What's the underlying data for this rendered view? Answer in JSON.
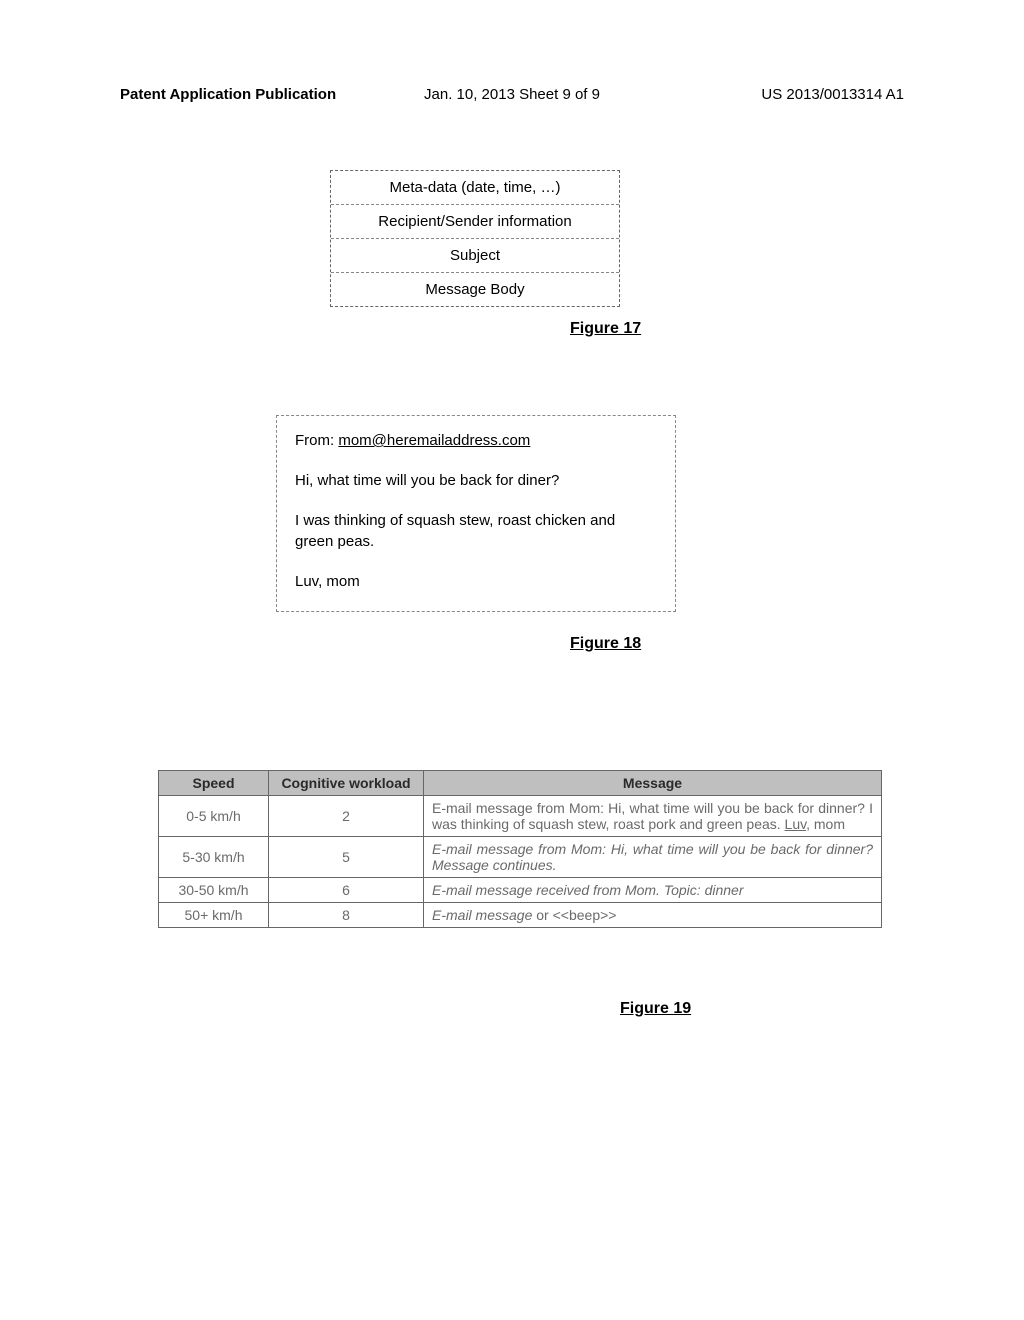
{
  "header": {
    "left": "Patent Application Publication",
    "center": "Jan. 10, 2013  Sheet 9 of 9",
    "right": "US 2013/0013314 A1"
  },
  "fig17": {
    "rows": [
      "Meta-data (date, time, …)",
      "Recipient/Sender information",
      "Subject",
      "Message Body"
    ],
    "label": "Figure 17"
  },
  "fig18": {
    "from_prefix": "From: ",
    "from_email": "mom@heremailaddress.com",
    "p1": "Hi, what time will you be back for diner?",
    "p2": "I was thinking of squash stew, roast chicken and green peas.",
    "p3": "Luv, mom",
    "label": "Figure 18"
  },
  "fig19": {
    "columns": [
      "Speed",
      "Cognitive workload",
      "Message"
    ],
    "rows": [
      {
        "speed": "0-5 km/h",
        "cog": "2",
        "msg_plain_pre": "E-mail message from Mom: Hi, what time will you be back for dinner? I was thinking of squash stew, roast pork and green peas. ",
        "msg_under_frag": "Luv",
        "msg_plain_post": ", mom",
        "style": "plain"
      },
      {
        "speed": "5-30 km/h",
        "cog": "5",
        "msg_italic": "E-mail message from Mom: Hi, what time will you be back for dinner? Message continues.",
        "style": "italic"
      },
      {
        "speed": "30-50 km/h",
        "cog": "6",
        "msg_italic": "E-mail message received from Mom. Topic: dinner",
        "style": "italic"
      },
      {
        "speed": "50+ km/h",
        "cog": "8",
        "msg_italic_pre": "E-mail message ",
        "msg_plain_mid": "or <<beep>>",
        "style": "mixed"
      }
    ],
    "label": "Figure 19"
  },
  "colors": {
    "page_bg": "#ffffff",
    "text": "#000000",
    "gray_text": "#6a6a6a",
    "header_bg": "#bfbfbf",
    "border": "#666666",
    "dashed_border": "#888888"
  }
}
